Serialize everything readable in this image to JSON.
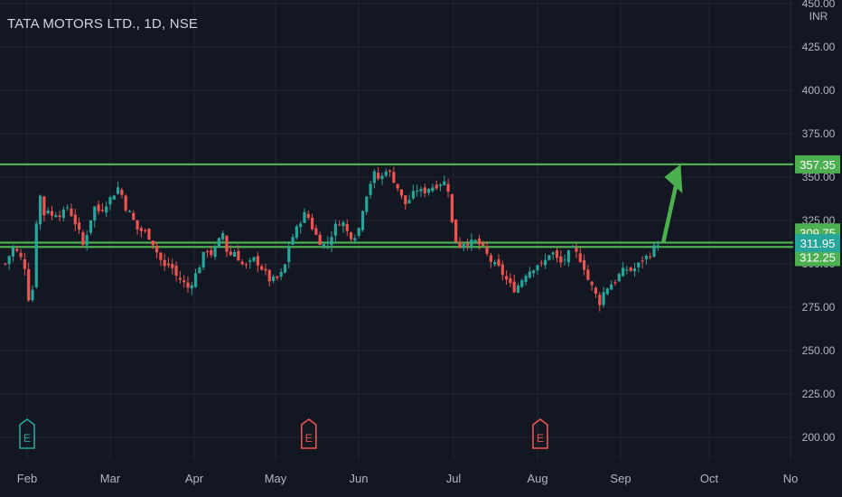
{
  "header": {
    "symbol_line": "TATA MOTORS LTD., 1D, NSE"
  },
  "price_axis": {
    "currency": "INR"
  },
  "colors": {
    "background": "#131722",
    "grid": "#232632",
    "axis_text": "#b2b5be",
    "up": "#26a69a",
    "down": "#ef5350",
    "level_line": "#4caf50",
    "level_label_bg": "#4caf50",
    "current_label_bg": "#26a69a",
    "earnings_up": "#26a69a",
    "earnings_down": "#ef5350"
  },
  "chart_data": {
    "type": "candlestick",
    "title": "TATA MOTORS LTD., 1D, NSE",
    "ylabel": "INR",
    "ylim": [
      187.5,
      450.0
    ],
    "y_ticks": [
      "200.00",
      "225.00",
      "250.00",
      "275.00",
      "300.00",
      "325.00",
      "350.00",
      "375.00",
      "400.00",
      "425.00",
      "450.00"
    ],
    "x_ticks": [
      "Feb",
      "Mar",
      "Apr",
      "May",
      "Jun",
      "Jul",
      "Aug",
      "Sep",
      "Oct",
      "Nov"
    ],
    "x_tick_labels_shown": [
      "Feb",
      "Mar",
      "Apr",
      "May",
      "Jun",
      "Jul",
      "Aug",
      "Sep",
      "Oct",
      "No"
    ],
    "grid": true,
    "horizontal_levels": [
      {
        "label": "357.35",
        "value": 357.35
      },
      {
        "label": "312.25",
        "value": 312.25
      },
      {
        "label": "309.75",
        "value": 309.75
      }
    ],
    "current_price_label": {
      "label": "311.95",
      "value": 311.95
    },
    "earnings_markers": [
      {
        "label": "E",
        "date": "Feb 1",
        "direction": "up"
      },
      {
        "label": "E",
        "date": "May 13",
        "direction": "down"
      },
      {
        "label": "E",
        "date": "Aug 2",
        "direction": "down"
      }
    ],
    "arrow_annotation": {
      "from": {
        "date": "Sep 16",
        "price": 313
      },
      "to": {
        "date": "Sep 22",
        "price": 357.35
      }
    },
    "close_path": [
      [
        "Jan 24",
        300
      ],
      [
        "Jan 27",
        310
      ],
      [
        "Jan 31",
        300
      ],
      [
        "Feb 2",
        275
      ],
      [
        "Feb 3",
        285
      ],
      [
        "Feb 4",
        320
      ],
      [
        "Feb 6",
        340
      ],
      [
        "Feb 7",
        325
      ],
      [
        "Feb 8",
        335
      ],
      [
        "Feb 10",
        327
      ],
      [
        "Feb 12",
        330
      ],
      [
        "Feb 14",
        328
      ],
      [
        "Feb 16",
        333
      ],
      [
        "Feb 18",
        327
      ],
      [
        "Feb 20",
        320
      ],
      [
        "Feb 22",
        310
      ],
      [
        "Feb 24",
        322
      ],
      [
        "Feb 26",
        333
      ],
      [
        "Feb 28",
        330
      ],
      [
        "Mar 2",
        340
      ],
      [
        "Mar 4",
        345
      ],
      [
        "Mar 6",
        333
      ],
      [
        "Mar 8",
        328
      ],
      [
        "Mar 10",
        320
      ],
      [
        "Mar 13",
        318
      ],
      [
        "Mar 15",
        313
      ],
      [
        "Mar 17",
        305
      ],
      [
        "Mar 19",
        298
      ],
      [
        "Mar 21",
        300
      ],
      [
        "Mar 23",
        293
      ],
      [
        "Mar 25",
        290
      ],
      [
        "Mar 27",
        286
      ],
      [
        "Mar 29",
        292
      ],
      [
        "Mar 31",
        300
      ],
      [
        "Apr 3",
        302
      ],
      [
        "Apr 6",
        308
      ],
      [
        "Apr 8",
        305
      ],
      [
        "Apr 10",
        312
      ],
      [
        "Apr 12",
        318
      ],
      [
        "Apr 14",
        303
      ],
      [
        "Apr 16",
        308
      ],
      [
        "Apr 18",
        303
      ],
      [
        "Apr 20",
        298
      ],
      [
        "Apr 22",
        300
      ],
      [
        "Apr 24",
        303
      ],
      [
        "Apr 26",
        299
      ],
      [
        "Apr 28",
        295
      ],
      [
        "Apr 30",
        290
      ],
      [
        "May 2",
        292
      ],
      [
        "May 4",
        296
      ],
      [
        "May 6",
        312
      ],
      [
        "May 8",
        318
      ],
      [
        "May 10",
        325
      ],
      [
        "May 12",
        330
      ],
      [
        "May 15",
        318
      ],
      [
        "May 17",
        313
      ],
      [
        "May 19",
        310
      ],
      [
        "May 21",
        316
      ],
      [
        "May 23",
        323
      ],
      [
        "May 25",
        325
      ],
      [
        "May 27",
        318
      ],
      [
        "May 29",
        315
      ],
      [
        "May 31",
        320
      ],
      [
        "Jun 2",
        330
      ],
      [
        "Jun 4",
        343
      ],
      [
        "Jun 6",
        352
      ],
      [
        "Jun 8",
        348
      ],
      [
        "Jun 10",
        355
      ],
      [
        "Jun 12",
        350
      ],
      [
        "Jun 14",
        343
      ],
      [
        "Jun 16",
        334
      ],
      [
        "Jun 18",
        338
      ],
      [
        "Jun 20",
        343
      ],
      [
        "Jun 22",
        341
      ],
      [
        "Jun 24",
        344
      ],
      [
        "Jun 26",
        345
      ],
      [
        "Jun 28",
        347
      ],
      [
        "Jun 30",
        347
      ],
      [
        "Jul 1",
        316
      ],
      [
        "Jul 3",
        310
      ],
      [
        "Jul 5",
        313
      ],
      [
        "Jul 7",
        312
      ],
      [
        "Jul 9",
        313
      ],
      [
        "Jul 11",
        310
      ],
      [
        "Jul 13",
        305
      ],
      [
        "Jul 15",
        300
      ],
      [
        "Jul 17",
        298
      ],
      [
        "Jul 19",
        293
      ],
      [
        "Jul 21",
        288
      ],
      [
        "Jul 23",
        285
      ],
      [
        "Jul 25",
        290
      ],
      [
        "Jul 27",
        295
      ],
      [
        "Jul 29",
        297
      ],
      [
        "Jul 31",
        300
      ],
      [
        "Aug 2",
        298
      ],
      [
        "Aug 4",
        302
      ],
      [
        "Aug 6",
        308
      ],
      [
        "Aug 8",
        303
      ],
      [
        "Aug 10",
        300
      ],
      [
        "Aug 12",
        305
      ],
      [
        "Aug 14",
        308
      ],
      [
        "Aug 16",
        305
      ],
      [
        "Aug 18",
        300
      ],
      [
        "Aug 20",
        290
      ],
      [
        "Aug 22",
        285
      ],
      [
        "Aug 24",
        277
      ],
      [
        "Aug 26",
        285
      ],
      [
        "Aug 28",
        288
      ],
      [
        "Aug 30",
        290
      ],
      [
        "Sep 1",
        295
      ],
      [
        "Sep 3",
        297
      ],
      [
        "Sep 5",
        296
      ],
      [
        "Sep 7",
        299
      ],
      [
        "Sep 9",
        303
      ],
      [
        "Sep 11",
        305
      ],
      [
        "Sep 13",
        310
      ],
      [
        "Sep 15",
        314
      ]
    ]
  }
}
